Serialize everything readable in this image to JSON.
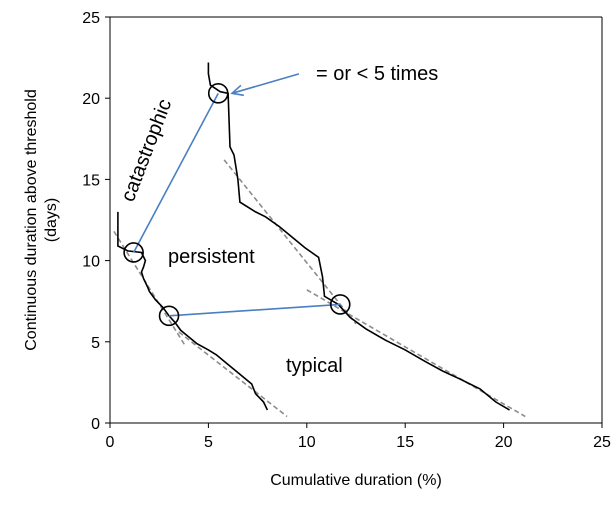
{
  "chart_data": {
    "type": "line",
    "title": "",
    "xlabel": "Cumulative duration (%)",
    "ylabel_line1": "Continuous duration above threshold",
    "ylabel_line2": "(days)",
    "xlim": [
      0,
      25
    ],
    "ylim": [
      0,
      25
    ],
    "x_ticks": [
      0,
      5,
      10,
      15,
      20,
      25
    ],
    "y_ticks": [
      0,
      5,
      10,
      15,
      20,
      25
    ],
    "grid": false,
    "series": [
      {
        "style": "solid-black",
        "points": [
          [
            8.0,
            0.8
          ],
          [
            7.8,
            1.3
          ],
          [
            7.4,
            1.8
          ],
          [
            7.2,
            2.4
          ],
          [
            6.6,
            3.0
          ],
          [
            6.2,
            3.4
          ],
          [
            5.8,
            3.8
          ],
          [
            5.4,
            4.2
          ],
          [
            5.0,
            4.5
          ],
          [
            4.4,
            4.9
          ],
          [
            4.0,
            5.3
          ],
          [
            3.6,
            5.7
          ],
          [
            3.3,
            6.2
          ],
          [
            3.0,
            6.6
          ],
          [
            2.7,
            7.1
          ],
          [
            2.3,
            7.6
          ],
          [
            2.0,
            8.1
          ],
          [
            1.9,
            8.4
          ],
          [
            1.7,
            8.9
          ],
          [
            1.6,
            9.3
          ],
          [
            1.7,
            9.6
          ],
          [
            1.8,
            10.0
          ],
          [
            1.6,
            10.5
          ],
          [
            0.9,
            10.6
          ],
          [
            0.4,
            10.9
          ],
          [
            0.4,
            13.0
          ]
        ]
      },
      {
        "style": "solid-black",
        "points": [
          [
            20.3,
            0.8
          ],
          [
            19.6,
            1.3
          ],
          [
            18.8,
            2.1
          ],
          [
            17.8,
            2.7
          ],
          [
            16.9,
            3.2
          ],
          [
            16.0,
            3.8
          ],
          [
            15.0,
            4.5
          ],
          [
            14.0,
            5.1
          ],
          [
            13.0,
            5.8
          ],
          [
            12.2,
            6.5
          ],
          [
            11.6,
            7.3
          ],
          [
            10.9,
            7.8
          ],
          [
            10.8,
            9.0
          ],
          [
            10.6,
            10.2
          ],
          [
            9.9,
            10.8
          ],
          [
            9.3,
            11.4
          ],
          [
            8.6,
            12.1
          ],
          [
            7.9,
            12.7
          ],
          [
            7.4,
            13.0
          ],
          [
            6.6,
            13.6
          ],
          [
            6.5,
            15.0
          ],
          [
            6.3,
            16.5
          ],
          [
            6.1,
            17.0
          ],
          [
            6.0,
            20.3
          ],
          [
            5.6,
            20.4
          ],
          [
            5.1,
            20.8
          ],
          [
            5.0,
            21.5
          ],
          [
            5.0,
            22.2
          ]
        ]
      },
      {
        "style": "dashed-gray",
        "segments": [
          [
            [
              0.2,
              11.8
            ],
            [
              3.8,
              4.8
            ]
          ],
          [
            [
              3.5,
              5.6
            ],
            [
              9.0,
              0.4
            ]
          ],
          [
            [
              5.8,
              16.2
            ],
            [
              12.5,
              6.1
            ]
          ],
          [
            [
              10.0,
              8.2
            ],
            [
              21.1,
              0.4
            ]
          ]
        ]
      }
    ],
    "connectors": [
      {
        "from": [
          1.2,
          10.5
        ],
        "to": [
          5.5,
          20.3
        ]
      },
      {
        "from": [
          3.0,
          6.6
        ],
        "to": [
          11.7,
          7.3
        ]
      }
    ],
    "circles": [
      [
        5.5,
        20.3
      ],
      [
        1.2,
        10.5
      ],
      [
        3.0,
        6.6
      ],
      [
        11.7,
        7.3
      ]
    ],
    "arrow": {
      "tip": [
        6.2,
        20.3
      ],
      "tail": [
        9.6,
        21.5
      ]
    },
    "annotations": {
      "catastrophic": "catastrophic",
      "persistent": "persistent",
      "typical": "typical",
      "times": "= or < 5 times"
    }
  }
}
